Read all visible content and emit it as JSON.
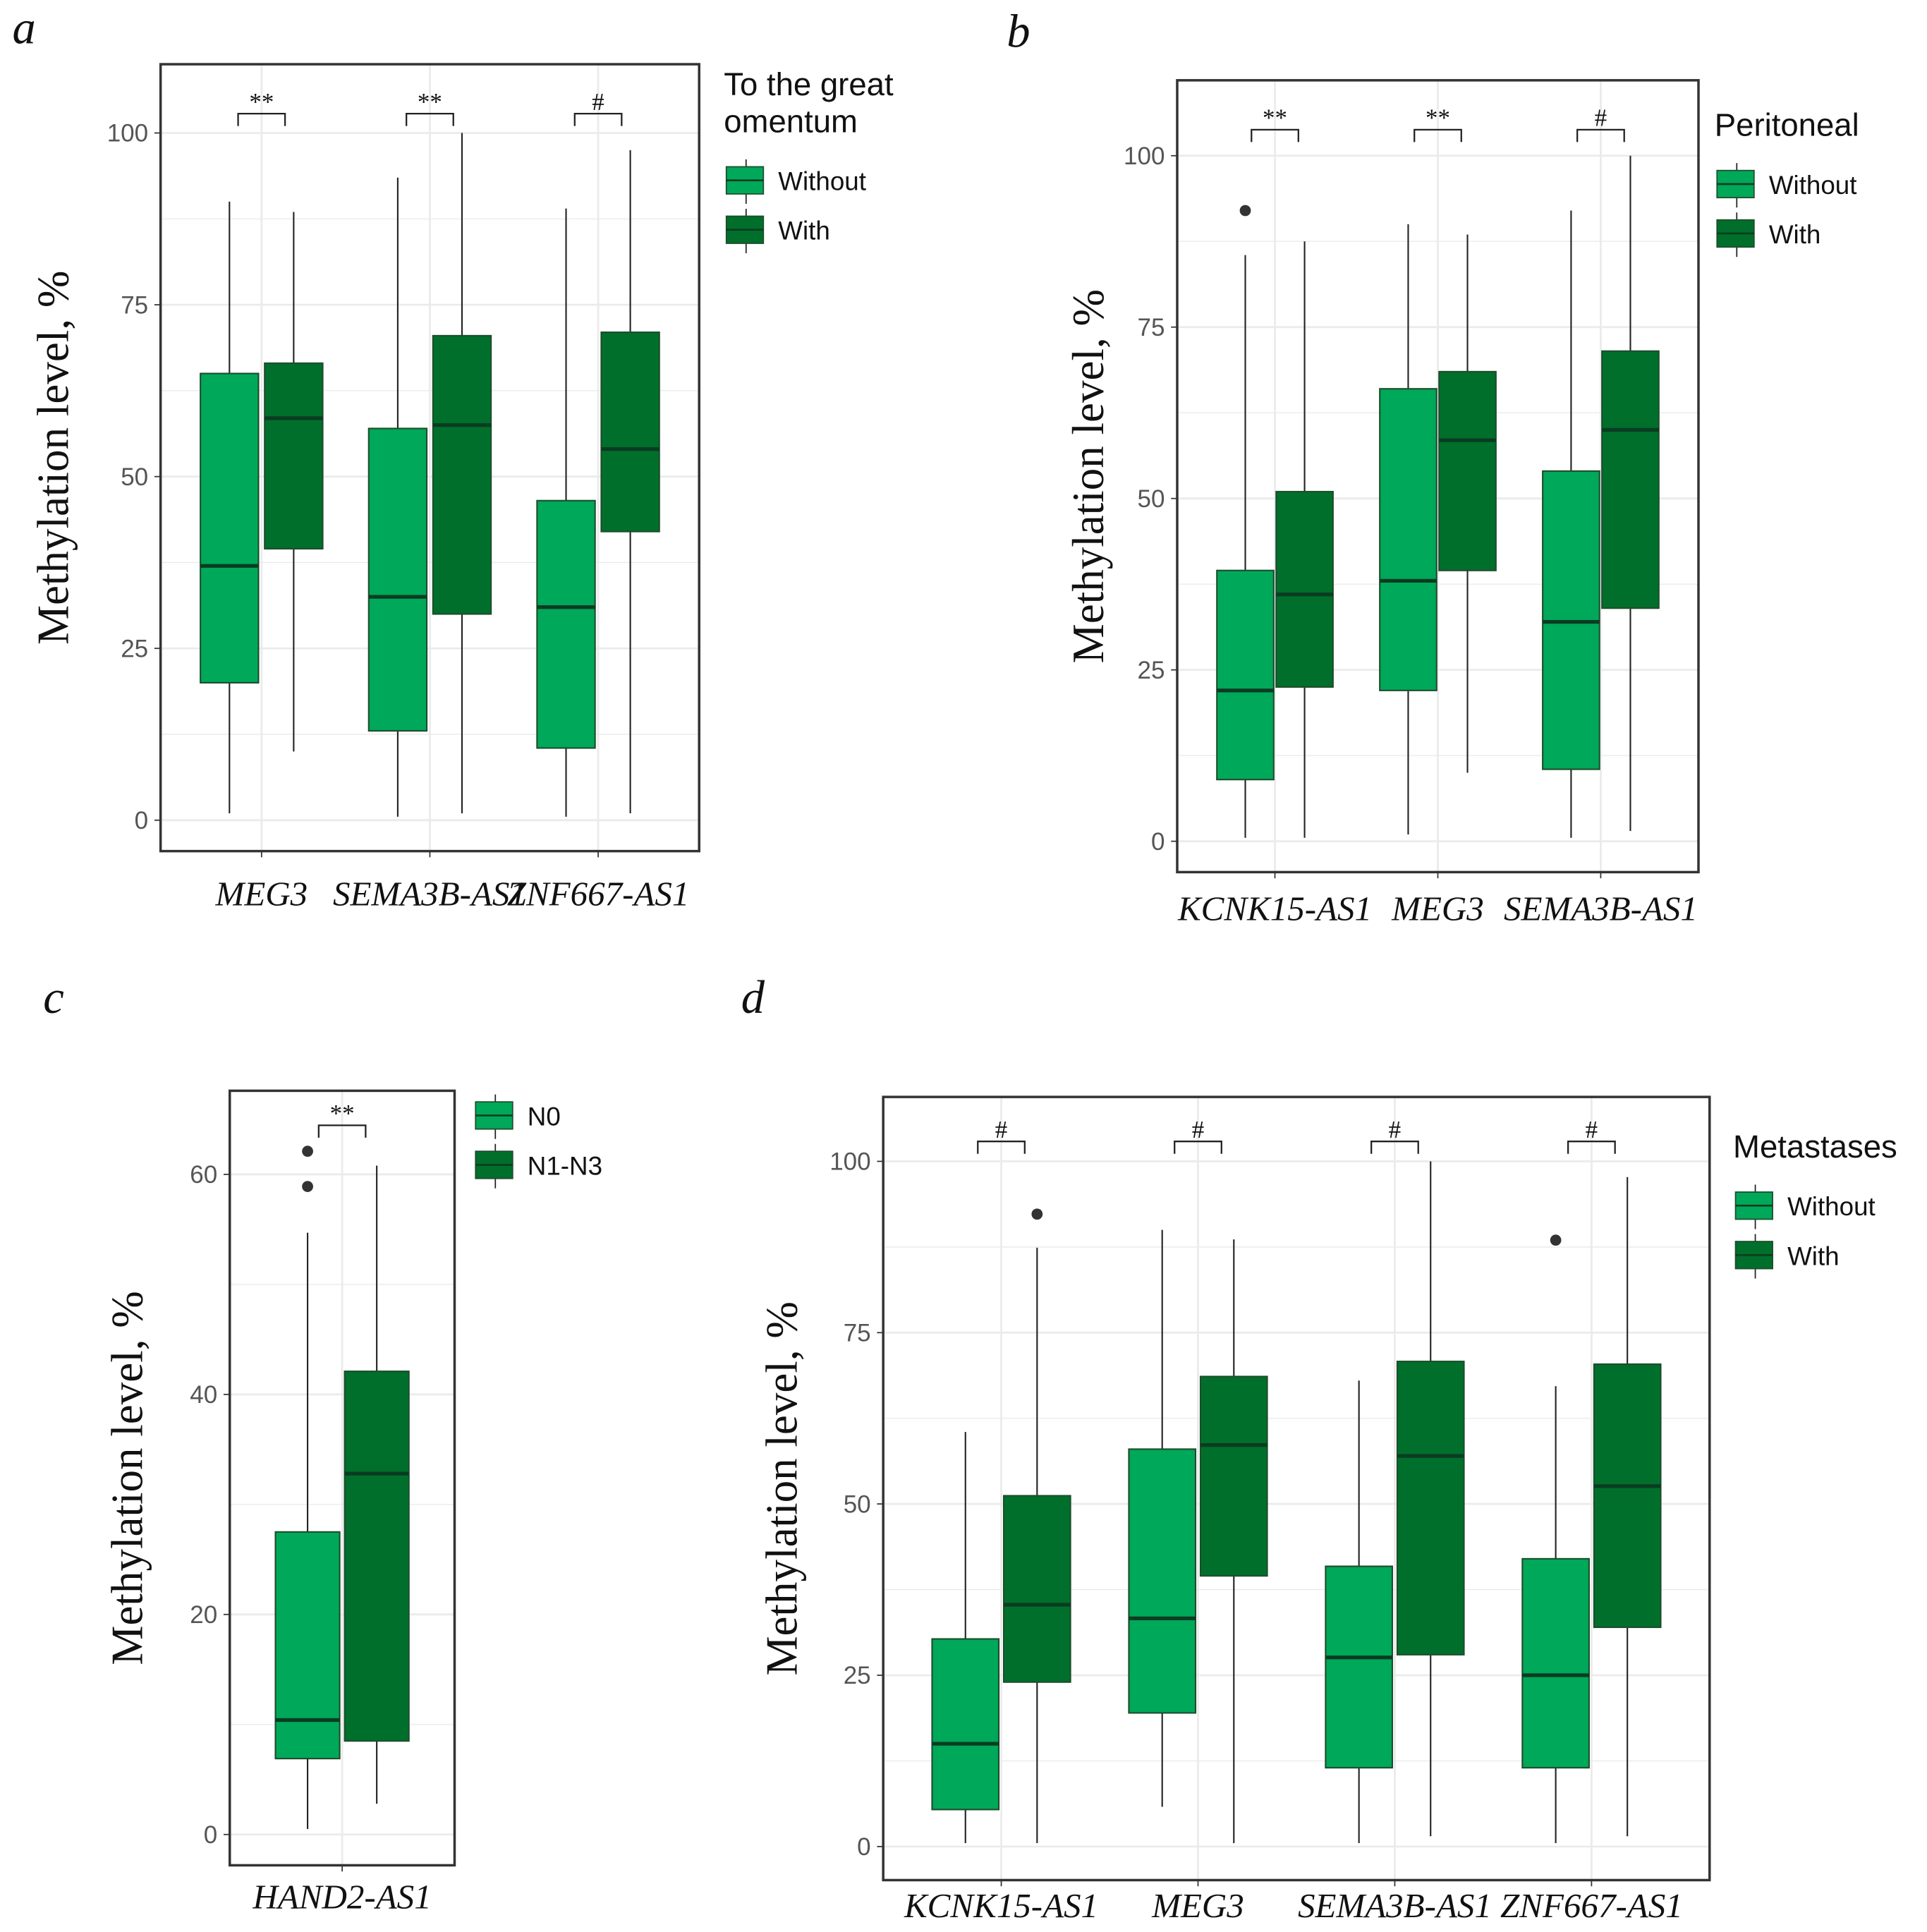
{
  "colors": {
    "without": "#00A859",
    "with": "#006F2B",
    "median": "#0B3B22",
    "grid": "#EBEBEB"
  },
  "chart_data": [
    {
      "panel": "a",
      "type": "box",
      "ylabel": "Methylation level, %",
      "ylim": [
        -4.5,
        110
      ],
      "yticks": [
        0,
        25,
        50,
        75,
        100
      ],
      "legend_title": "To the great omentum",
      "legend_placement": "right",
      "series_names": [
        "Without",
        "With"
      ],
      "categories": [
        "MEG3",
        "SEMA3B-AS1",
        "ZNF667-AS1"
      ],
      "significance": [
        "**",
        "**",
        "#"
      ],
      "boxes": [
        [
          {
            "low": 1,
            "q1": 20,
            "median": 37,
            "q3": 65,
            "high": 90,
            "outliers": []
          },
          {
            "low": 10,
            "q1": 39.5,
            "median": 58.5,
            "q3": 66.5,
            "high": 88.5,
            "outliers": []
          }
        ],
        [
          {
            "low": 0.5,
            "q1": 13,
            "median": 32.5,
            "q3": 57,
            "high": 93.5,
            "outliers": []
          },
          {
            "low": 1,
            "q1": 30,
            "median": 57.5,
            "q3": 70.5,
            "high": 100,
            "outliers": []
          }
        ],
        [
          {
            "low": 0.5,
            "q1": 10.5,
            "median": 31,
            "q3": 46.5,
            "high": 89,
            "outliers": []
          },
          {
            "low": 1,
            "q1": 42,
            "median": 54,
            "q3": 71,
            "high": 97.5,
            "outliers": []
          }
        ]
      ]
    },
    {
      "panel": "b",
      "type": "box",
      "ylabel": "Methylation level, %",
      "ylim": [
        -4.5,
        111
      ],
      "yticks": [
        0,
        25,
        50,
        75,
        100
      ],
      "legend_title": "Peritoneal",
      "legend_placement": "right",
      "series_names": [
        "Without",
        "With"
      ],
      "categories": [
        "KCNK15-AS1",
        "MEG3",
        "SEMA3B-AS1"
      ],
      "significance": [
        "**",
        "**",
        "#"
      ],
      "boxes": [
        [
          {
            "low": 0.5,
            "q1": 9,
            "median": 22,
            "q3": 39.5,
            "high": 85.5,
            "outliers": [
              92
            ]
          },
          {
            "low": 0.5,
            "q1": 22.5,
            "median": 36,
            "q3": 51,
            "high": 87.5,
            "outliers": []
          }
        ],
        [
          {
            "low": 1,
            "q1": 22,
            "median": 38,
            "q3": 66,
            "high": 90,
            "outliers": []
          },
          {
            "low": 10,
            "q1": 39.5,
            "median": 58.5,
            "q3": 68.5,
            "high": 88.5,
            "outliers": []
          }
        ],
        [
          {
            "low": 0.5,
            "q1": 10.5,
            "median": 32,
            "q3": 54,
            "high": 92,
            "outliers": []
          },
          {
            "low": 1.5,
            "q1": 34,
            "median": 60,
            "q3": 71.5,
            "high": 100,
            "outliers": []
          }
        ]
      ]
    },
    {
      "panel": "c",
      "type": "box",
      "ylabel": "Methylation level, %",
      "ylim": [
        -2.8,
        67.6
      ],
      "yticks": [
        0,
        20,
        40,
        60
      ],
      "legend_title": "",
      "legend_placement": "right",
      "series_names": [
        "N0",
        "N1-N3"
      ],
      "categories": [
        "HAND2-AS1"
      ],
      "significance": [
        "**"
      ],
      "boxes": [
        [
          {
            "low": 0.5,
            "q1": 6.9,
            "median": 10.4,
            "q3": 27.5,
            "high": 54.7,
            "outliers": [
              58.9,
              62.1
            ]
          },
          {
            "low": 2.8,
            "q1": 8.5,
            "median": 32.8,
            "q3": 42.1,
            "high": 60.8,
            "outliers": []
          }
        ]
      ]
    },
    {
      "panel": "d",
      "type": "box",
      "ylabel": "Methylation level, %",
      "ylim": [
        -4.9,
        109.4
      ],
      "yticks": [
        0,
        25,
        50,
        75,
        100
      ],
      "legend_title": "Metastases",
      "legend_placement": "right",
      "series_names": [
        "Without",
        "With"
      ],
      "categories": [
        "KCNK15-AS1",
        "MEG3",
        "SEMA3B-AS1",
        "ZNF667-AS1"
      ],
      "significance": [
        "#",
        "#",
        "#",
        "#"
      ],
      "boxes": [
        [
          {
            "low": 0.5,
            "q1": 5.4,
            "median": 15,
            "q3": 30.3,
            "high": 60.5,
            "outliers": []
          },
          {
            "low": 0.5,
            "q1": 24,
            "median": 35.3,
            "q3": 51.2,
            "high": 87.4,
            "outliers": [
              92.3
            ]
          }
        ],
        [
          {
            "low": 5.8,
            "q1": 19.5,
            "median": 33.3,
            "q3": 58,
            "high": 90,
            "outliers": []
          },
          {
            "low": 0.5,
            "q1": 39.5,
            "median": 58.6,
            "q3": 68.6,
            "high": 88.6,
            "outliers": []
          }
        ],
        [
          {
            "low": 0.5,
            "q1": 11.5,
            "median": 27.6,
            "q3": 40.9,
            "high": 68,
            "outliers": []
          },
          {
            "low": 1.5,
            "q1": 28,
            "median": 57,
            "q3": 70.8,
            "high": 100,
            "outliers": []
          }
        ],
        [
          {
            "low": 0.5,
            "q1": 11.5,
            "median": 25,
            "q3": 42,
            "high": 67.2,
            "outliers": [
              88.5
            ]
          },
          {
            "low": 1.5,
            "q1": 32,
            "median": 52.6,
            "q3": 70.4,
            "high": 97.7,
            "outliers": []
          }
        ]
      ]
    }
  ]
}
